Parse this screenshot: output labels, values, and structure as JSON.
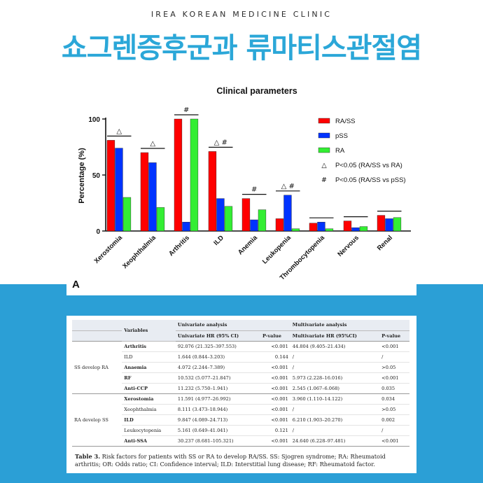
{
  "header": {
    "clinic_name": "IREA KOREAN MEDICINE CLINIC",
    "headline": "쇼그렌증후군과 류마티스관절염"
  },
  "chart_data": {
    "type": "bar",
    "title": "Clinical parameters",
    "ylabel": "Percentage (%)",
    "xlabel": "",
    "ylim": [
      0,
      100
    ],
    "yticks": [
      "0",
      "50",
      "100"
    ],
    "panel_label": "A",
    "grid": false,
    "legend_position": "top-right",
    "categories": [
      "Xerostomia",
      "Xeophthalmia",
      "Arthritis",
      "ILD",
      "Anemia",
      "Leukopenia",
      "Thrombocytopenia",
      "Nervous",
      "Renal"
    ],
    "series": [
      {
        "name": "RA/SS",
        "color": "#ff0000",
        "values": [
          81,
          70,
          100,
          71,
          29,
          11,
          7,
          9,
          14
        ]
      },
      {
        "name": "pSS",
        "color": "#0033ff",
        "values": [
          74,
          61,
          8,
          29,
          10,
          32,
          8,
          3,
          11
        ]
      },
      {
        "name": "RA",
        "color": "#33ee33",
        "values": [
          30,
          21,
          100,
          22,
          19,
          2,
          2,
          4,
          12
        ]
      }
    ],
    "annotations": [
      "△",
      "△",
      "#",
      "△ #",
      "#",
      "△ #",
      "",
      "",
      ""
    ],
    "legend_notes": [
      {
        "symbol": "△",
        "text": "P<0.05 (RA/SS vs RA)"
      },
      {
        "symbol": "#",
        "text": "P<0.05 (RA/SS vs pSS)"
      }
    ]
  },
  "table": {
    "header_top": [
      "Variables",
      "Univariate analysis",
      "Multivariate analysis"
    ],
    "header_sub": [
      "Univariate HR (95% CI)",
      "P-value",
      "Multivariate HR (95%CI)",
      "P-value"
    ],
    "groups": [
      {
        "label": "SS develop RA",
        "rows": [
          {
            "variable": "Arthritis",
            "bold": true,
            "uni_hr": "92.076 (21.325–397.553)",
            "uni_p": "<0.001",
            "multi_hr": "44.804 (9.405–21.434)",
            "multi_p": "<0.001"
          },
          {
            "variable": "ILD",
            "bold": false,
            "uni_hr": "1.644 (0.844–3.203)",
            "uni_p": "0.144",
            "multi_hr": "/",
            "multi_p": "/"
          },
          {
            "variable": "Anaemia",
            "bold": true,
            "uni_hr": "4.072 (2.244–7.389)",
            "uni_p": "<0.001",
            "multi_hr": "/",
            "multi_p": ">0.05"
          },
          {
            "variable": "RF",
            "bold": true,
            "uni_hr": "10.532 (5.077–21.847)",
            "uni_p": "<0.001",
            "multi_hr": "5.973 (2.228–16.016)",
            "multi_p": "<0.001"
          },
          {
            "variable": "Anti-CCP",
            "bold": true,
            "uni_hr": "11.232 (5.750–1.941)",
            "uni_p": "<0.001",
            "multi_hr": "2.545 (1.067–6.068)",
            "multi_p": "0.035"
          }
        ]
      },
      {
        "label": "RA develop SS",
        "rows": [
          {
            "variable": "Xerostomia",
            "bold": true,
            "uni_hr": "11.591 (4.977–26.992)",
            "uni_p": "<0.001",
            "multi_hr": "3.960 (1.110–14.122)",
            "multi_p": "0.034"
          },
          {
            "variable": "Xeophthalmia",
            "bold": false,
            "uni_hr": "8.111 (3.473–18.944)",
            "uni_p": "<0.001",
            "multi_hr": "/",
            "multi_p": ">0.05"
          },
          {
            "variable": "ILD",
            "bold": true,
            "uni_hr": "9.847 (4.089–24.713)",
            "uni_p": "<0.001",
            "multi_hr": "6.210 (1.903–20.270)",
            "multi_p": "0.002"
          },
          {
            "variable": "Leukocytopenia",
            "bold": false,
            "uni_hr": "5.161 (0.649–41.041)",
            "uni_p": "0.121",
            "multi_hr": "/",
            "multi_p": "/"
          },
          {
            "variable": "Anti-SSA",
            "bold": true,
            "uni_hr": "30.237 (8.681–105.321)",
            "uni_p": "<0.001",
            "multi_hr": "24.640 (6.228–97.481)",
            "multi_p": "<0.001"
          }
        ]
      }
    ],
    "caption_label": "Table 3.",
    "caption_text": " Risk factors for patients with SS or RA to develop RA/SS. SS: Sjogren syndrome; RA: Rheumatoid arthritis; OR: Odds ratio; CI: Confidence interval; ILD: Interstitial lung disease; RF: Rheumatoid factor."
  }
}
